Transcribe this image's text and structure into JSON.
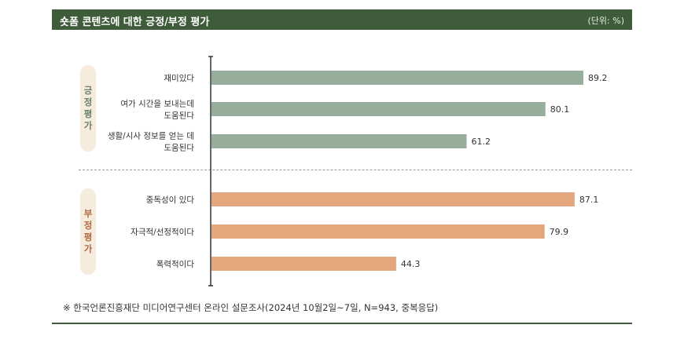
{
  "header": {
    "title": "숏폼 콘텐츠에 대한 긍정/부정 평가",
    "unit": "(단위: %)"
  },
  "groups": {
    "positive": {
      "label_chars": [
        "긍",
        "정",
        "평",
        "가"
      ]
    },
    "negative": {
      "label_chars": [
        "부",
        "정",
        "평",
        "가"
      ]
    }
  },
  "footnote": "※ 한국언론진흥재단 미디어연구센터 온라인 설문조사(2024년 10월2일~7일, N=943, 중복응답)",
  "colors": {
    "positive": "#98ae9c",
    "negative": "#e4a77d",
    "header": "#3f5c3a"
  },
  "chart_data": {
    "type": "bar",
    "orientation": "horizontal",
    "title": "숏폼 콘텐츠에 대한 긍정/부정 평가",
    "unit": "%",
    "xlim": [
      0,
      100
    ],
    "series": [
      {
        "name": "긍정 평가",
        "categories": [
          [
            "재미있다"
          ],
          [
            "여가 시간을 보내는데",
            "도움된다"
          ],
          [
            "생활/시사 정보를 얻는 데",
            "도움된다"
          ]
        ],
        "values": [
          89.2,
          80.1,
          61.2
        ]
      },
      {
        "name": "부정 평가",
        "categories": [
          [
            "중독성이 있다"
          ],
          [
            "자극적/선정적이다"
          ],
          [
            "폭력적이다"
          ]
        ],
        "values": [
          87.1,
          79.9,
          44.3
        ]
      }
    ]
  }
}
